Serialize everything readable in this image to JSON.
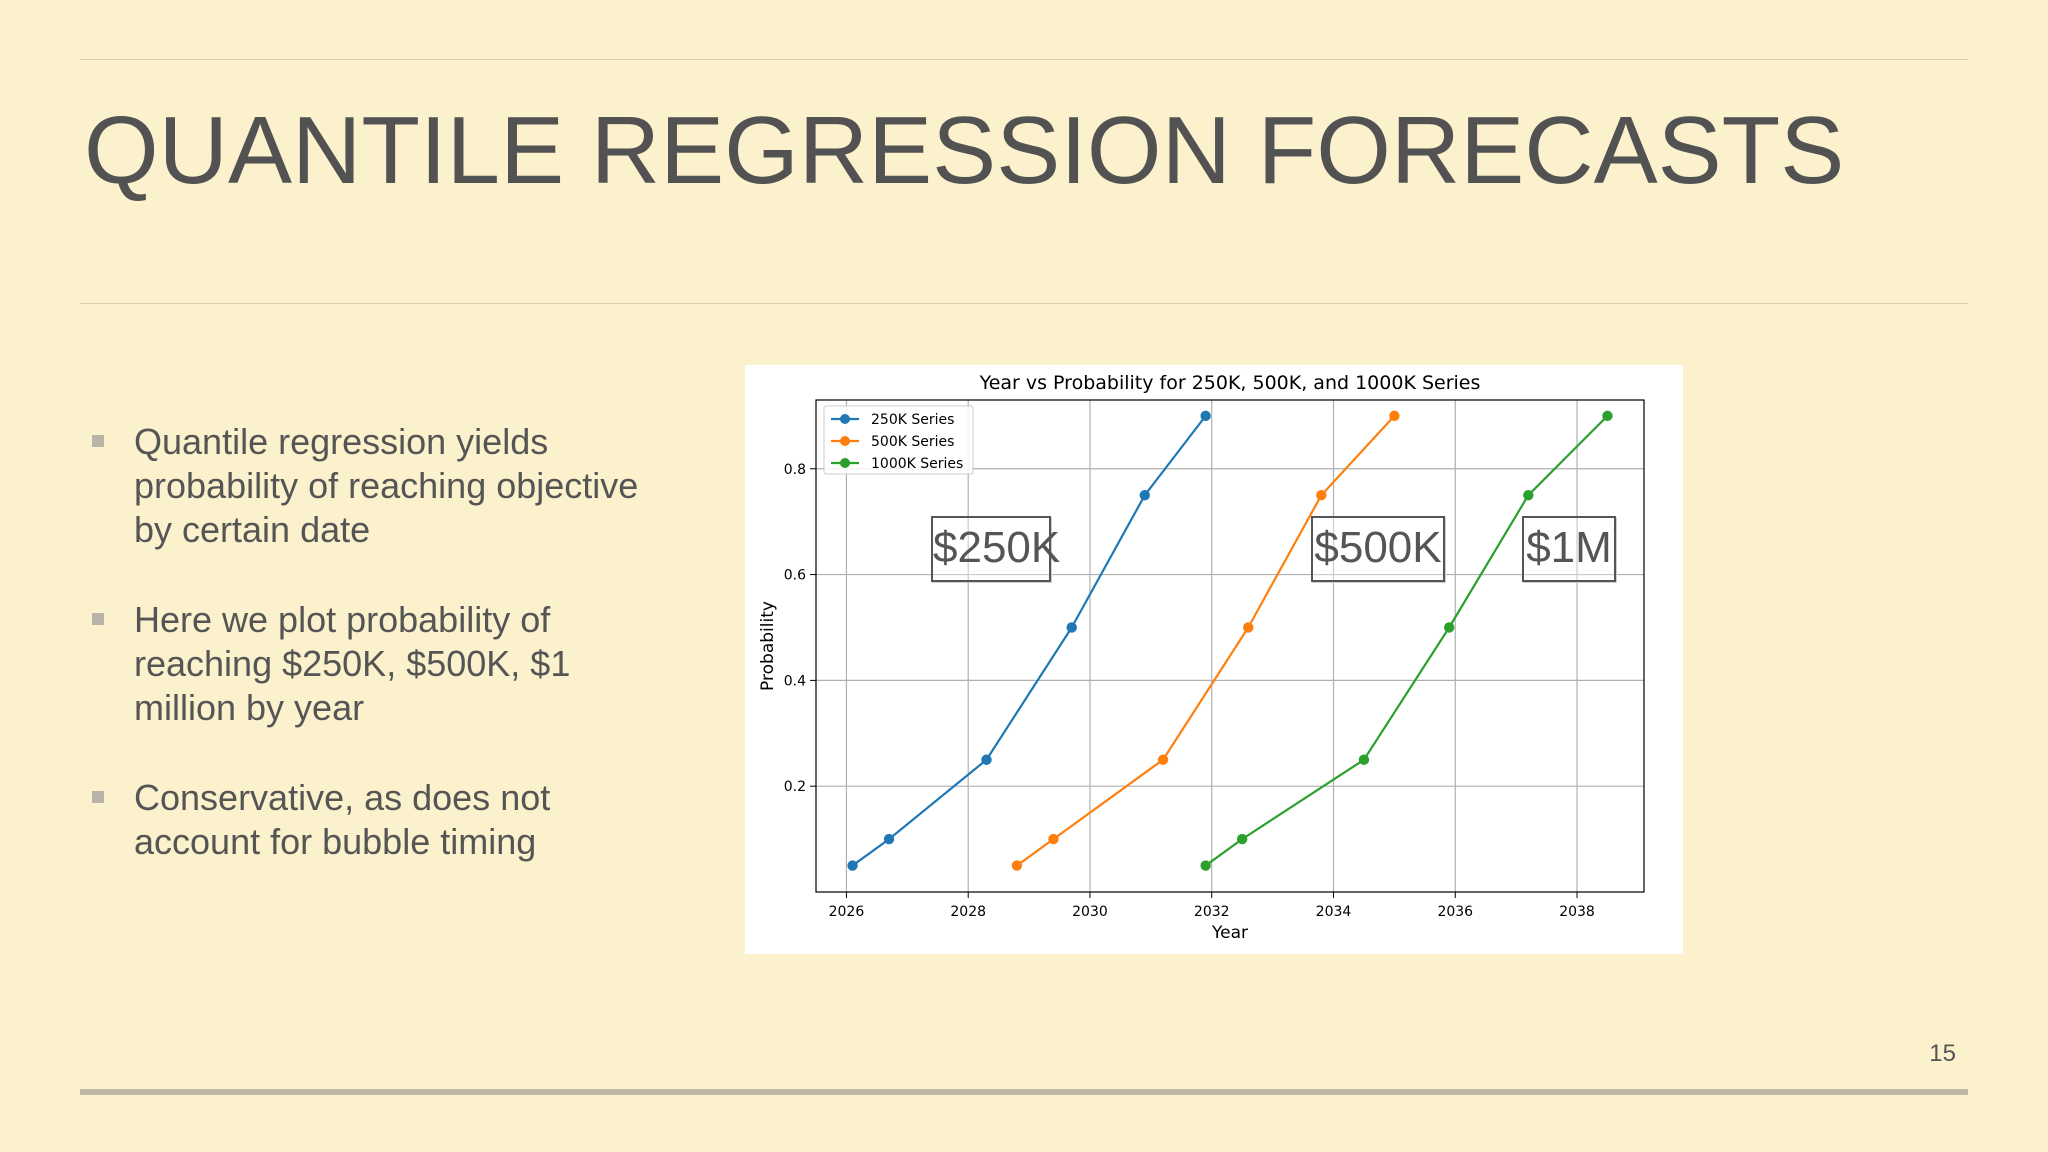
{
  "slide": {
    "title": "QUANTILE REGRESSION FORECASTS",
    "page_number": "15",
    "bullets": [
      "Quantile regression yields probability of reaching objective by certain date",
      "Here we plot probability of reaching $250K, $500K, $1 million by year",
      "Conservative, as does not account for bubble timing"
    ],
    "overlay_labels": [
      "$250K",
      "$500K",
      "$1M"
    ]
  },
  "colors": {
    "background": "#fbf1cc",
    "series_250k": "#1f77b4",
    "series_500k": "#ff7f0e",
    "series_1000k": "#2ca02c"
  },
  "chart_data": {
    "type": "line",
    "title": "Year vs Probability for 250K, 500K, and 1000K Series",
    "xlabel": "Year",
    "ylabel": "Probability",
    "xlim": [
      2025.5,
      2039.1
    ],
    "ylim": [
      0.0,
      0.93
    ],
    "xticks": [
      2026,
      2028,
      2030,
      2032,
      2034,
      2036,
      2038
    ],
    "yticks": [
      0.2,
      0.4,
      0.6,
      0.8
    ],
    "xtick_labels": [
      "2026",
      "2028",
      "2030",
      "2032",
      "2034",
      "2036",
      "2038"
    ],
    "ytick_labels": [
      "0.2",
      "0.4",
      "0.6",
      "0.8"
    ],
    "grid": true,
    "legend_position": "top-left",
    "series": [
      {
        "name": "250K Series",
        "color": "#1f77b4",
        "x": [
          2026.1,
          2026.7,
          2028.3,
          2029.7,
          2030.9,
          2031.9
        ],
        "y": [
          0.05,
          0.1,
          0.25,
          0.5,
          0.75,
          0.9
        ]
      },
      {
        "name": "500K Series",
        "color": "#ff7f0e",
        "x": [
          2028.8,
          2029.4,
          2031.2,
          2032.6,
          2033.8,
          2035.0
        ],
        "y": [
          0.05,
          0.1,
          0.25,
          0.5,
          0.75,
          0.9
        ]
      },
      {
        "name": "1000K Series",
        "color": "#2ca02c",
        "x": [
          2031.9,
          2032.5,
          2034.5,
          2035.9,
          2037.2,
          2038.5
        ],
        "y": [
          0.05,
          0.1,
          0.25,
          0.5,
          0.75,
          0.9
        ]
      }
    ]
  }
}
